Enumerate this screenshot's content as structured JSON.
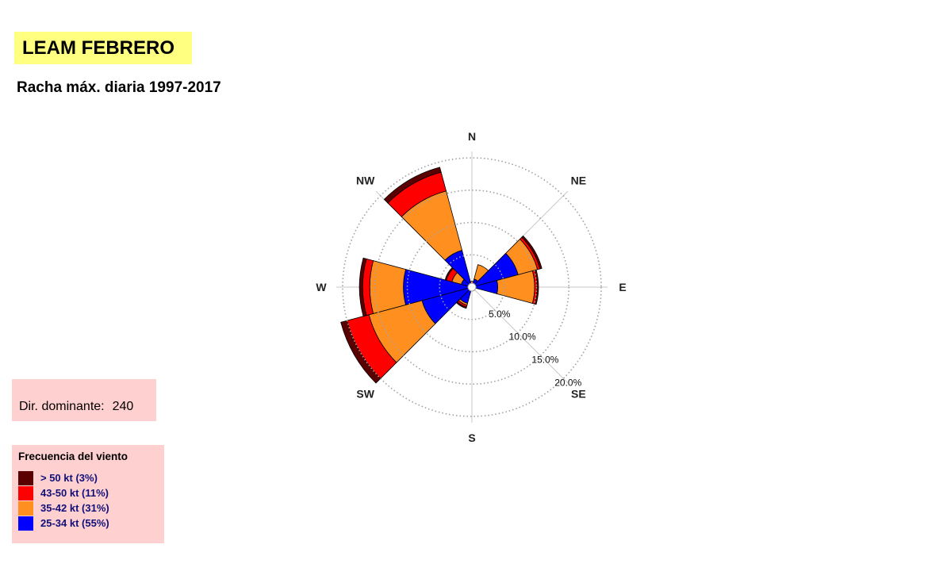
{
  "title": "LEAM FEBRERO",
  "subtitle": "Racha máx. diaria 1997-2017",
  "dominant": {
    "label": "Dir. dominante:",
    "value": "240"
  },
  "legend": {
    "title": "Frecuencia del viento",
    "items": [
      {
        "label": "> 50 kt (3%)",
        "color": "#5a0000"
      },
      {
        "label": "43-50 kt (11%)",
        "color": "#ff0000"
      },
      {
        "label": "35-42 kt (31%)",
        "color": "#ff9020"
      },
      {
        "label": "25-34 kt (55%)",
        "color": "#0000ff"
      }
    ]
  },
  "chart_data": {
    "type": "wind-rose",
    "directions": [
      "N",
      "NE",
      "E",
      "SE",
      "S",
      "SW",
      "W",
      "NW"
    ],
    "radial_ticks": [
      "5.0%",
      "10.0%",
      "15.0%",
      "20.0%"
    ],
    "radial_max": 20,
    "sectors": [
      {
        "dir": 0,
        "values": [
          0.6,
          0.3,
          0.0,
          0.0
        ]
      },
      {
        "dir": 30,
        "values": [
          1.3,
          2.3,
          0.0,
          0.0
        ]
      },
      {
        "dir": 60,
        "values": [
          7.4,
          3.1,
          0.4,
          0.3
        ]
      },
      {
        "dir": 90,
        "values": [
          4.0,
          5.7,
          0.4,
          0.2
        ]
      },
      {
        "dir": 120,
        "values": [
          0.0,
          0.0,
          0.0,
          0.0
        ]
      },
      {
        "dir": 150,
        "values": [
          0.0,
          0.0,
          0.0,
          0.0
        ]
      },
      {
        "dir": 180,
        "values": [
          0.0,
          0.0,
          0.0,
          0.0
        ]
      },
      {
        "dir": 210,
        "values": [
          2.6,
          0.3,
          0.3,
          0.2
        ]
      },
      {
        "dir": 240,
        "values": [
          8.0,
          8.5,
          3.5,
          1.0
        ]
      },
      {
        "dir": 270,
        "values": [
          10.6,
          5.2,
          1.1,
          0.5
        ]
      },
      {
        "dir": 300,
        "values": [
          1.7,
          1.5,
          0.9,
          0.2
        ]
      },
      {
        "dir": 330,
        "values": [
          5.9,
          9.5,
          3.0,
          0.8
        ]
      }
    ],
    "grid": true
  }
}
